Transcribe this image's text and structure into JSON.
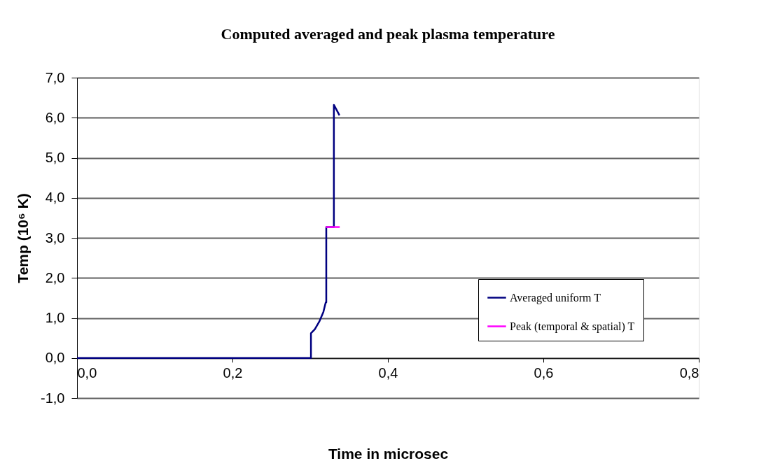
{
  "chart_data": {
    "type": "line",
    "title": "Computed averaged and peak plasma temperature",
    "xlabel": "Time in microsec",
    "ylabel": "Temp (10⁶ K)",
    "xlim": [
      0,
      0.8
    ],
    "ylim": [
      -1,
      7
    ],
    "xticks": [
      {
        "value": 0,
        "label": "0,0"
      },
      {
        "value": 0.2,
        "label": "0,2"
      },
      {
        "value": 0.4,
        "label": "0,4"
      },
      {
        "value": 0.6,
        "label": "0,6"
      },
      {
        "value": 0.8,
        "label": "0,8"
      }
    ],
    "yticks": [
      {
        "value": -1,
        "label": "-1,0"
      },
      {
        "value": 0,
        "label": "0,0"
      },
      {
        "value": 1,
        "label": "1,0"
      },
      {
        "value": 2,
        "label": "2,0"
      },
      {
        "value": 3,
        "label": "3,0"
      },
      {
        "value": 4,
        "label": "4,0"
      },
      {
        "value": 5,
        "label": "5,0"
      },
      {
        "value": 6,
        "label": "6,0"
      },
      {
        "value": 7,
        "label": "7,0"
      }
    ],
    "grid": "y",
    "legend": "right",
    "series": [
      {
        "name": "Averaged uniform T",
        "color": "#000080",
        "x": [
          0,
          0.301,
          0.301,
          0.306,
          0.312,
          0.317,
          0.32,
          0.3207,
          0.3207,
          0.3305,
          0.3305,
          0.3377
        ],
        "values": [
          0,
          0,
          0.62,
          0.72,
          0.92,
          1.15,
          1.39,
          1.39,
          3.27,
          3.27,
          6.32,
          6.06
        ]
      },
      {
        "name": "Peak (temporal & spatial) T",
        "color": "#ff00ff",
        "x": [
          0.32,
          0.338
        ],
        "values": [
          3.27,
          3.27
        ]
      }
    ]
  }
}
